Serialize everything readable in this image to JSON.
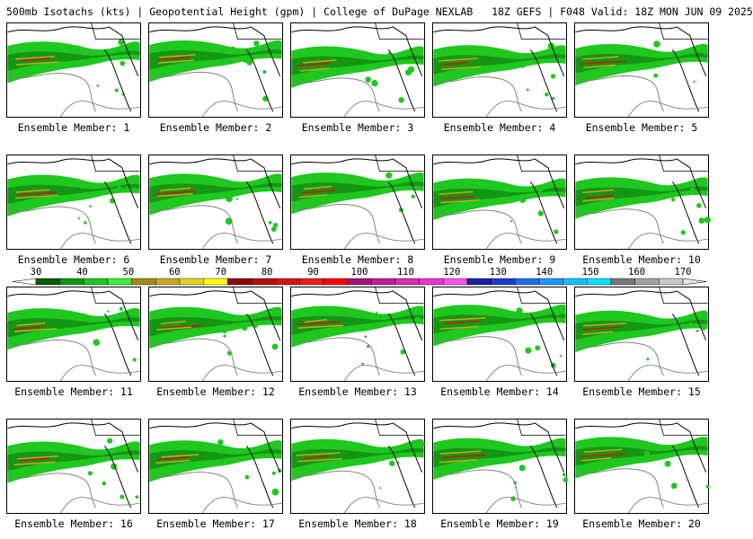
{
  "header": {
    "title": "500mb Isotachs (kts) | Geopotential Height (gpm) | College of DuPage NEXLAB",
    "run_info": "18Z GEFS | F048 Valid: 18Z MON JUN 09 2025"
  },
  "panels": [
    {
      "caption": "Ensemble Member: 1"
    },
    {
      "caption": "Ensemble Member: 2"
    },
    {
      "caption": "Ensemble Member: 3"
    },
    {
      "caption": "Ensemble Member: 4"
    },
    {
      "caption": "Ensemble Member: 5"
    },
    {
      "caption": "Ensemble Member: 6"
    },
    {
      "caption": "Ensemble Member: 7"
    },
    {
      "caption": "Ensemble Member: 8"
    },
    {
      "caption": "Ensemble Member: 9"
    },
    {
      "caption": "Ensemble Member: 10"
    },
    {
      "caption": "Ensemble Member: 11"
    },
    {
      "caption": "Ensemble Member: 12"
    },
    {
      "caption": "Ensemble Member: 13"
    },
    {
      "caption": "Ensemble Member: 14"
    },
    {
      "caption": "Ensemble Member: 15"
    },
    {
      "caption": "Ensemble Member: 16"
    },
    {
      "caption": "Ensemble Member: 17"
    },
    {
      "caption": "Ensemble Member: 18"
    },
    {
      "caption": "Ensemble Member: 19"
    },
    {
      "caption": "Ensemble Member: 20"
    }
  ],
  "colorbar": {
    "labels": [
      "30",
      "40",
      "50",
      "60",
      "70",
      "80",
      "90",
      "100",
      "110",
      "120",
      "130",
      "140",
      "150",
      "160",
      "170"
    ],
    "colors": [
      "#0b5a0b",
      "#149614",
      "#1ec81e",
      "#3cf03c",
      "#a08a1e",
      "#c8a81e",
      "#e6d21e",
      "#ffff00",
      "#8c0a0a",
      "#b40f0f",
      "#d21414",
      "#f01e1e",
      "#ff0000",
      "#a0147a",
      "#be1e96",
      "#dc28b4",
      "#f032d2",
      "#ff50f0",
      "#1e1ea0",
      "#1e3cd2",
      "#1e6ef0",
      "#1e96ff",
      "#14beff",
      "#00e1ff",
      "#787878",
      "#a0a0a0",
      "#c8c8c8"
    ]
  }
}
